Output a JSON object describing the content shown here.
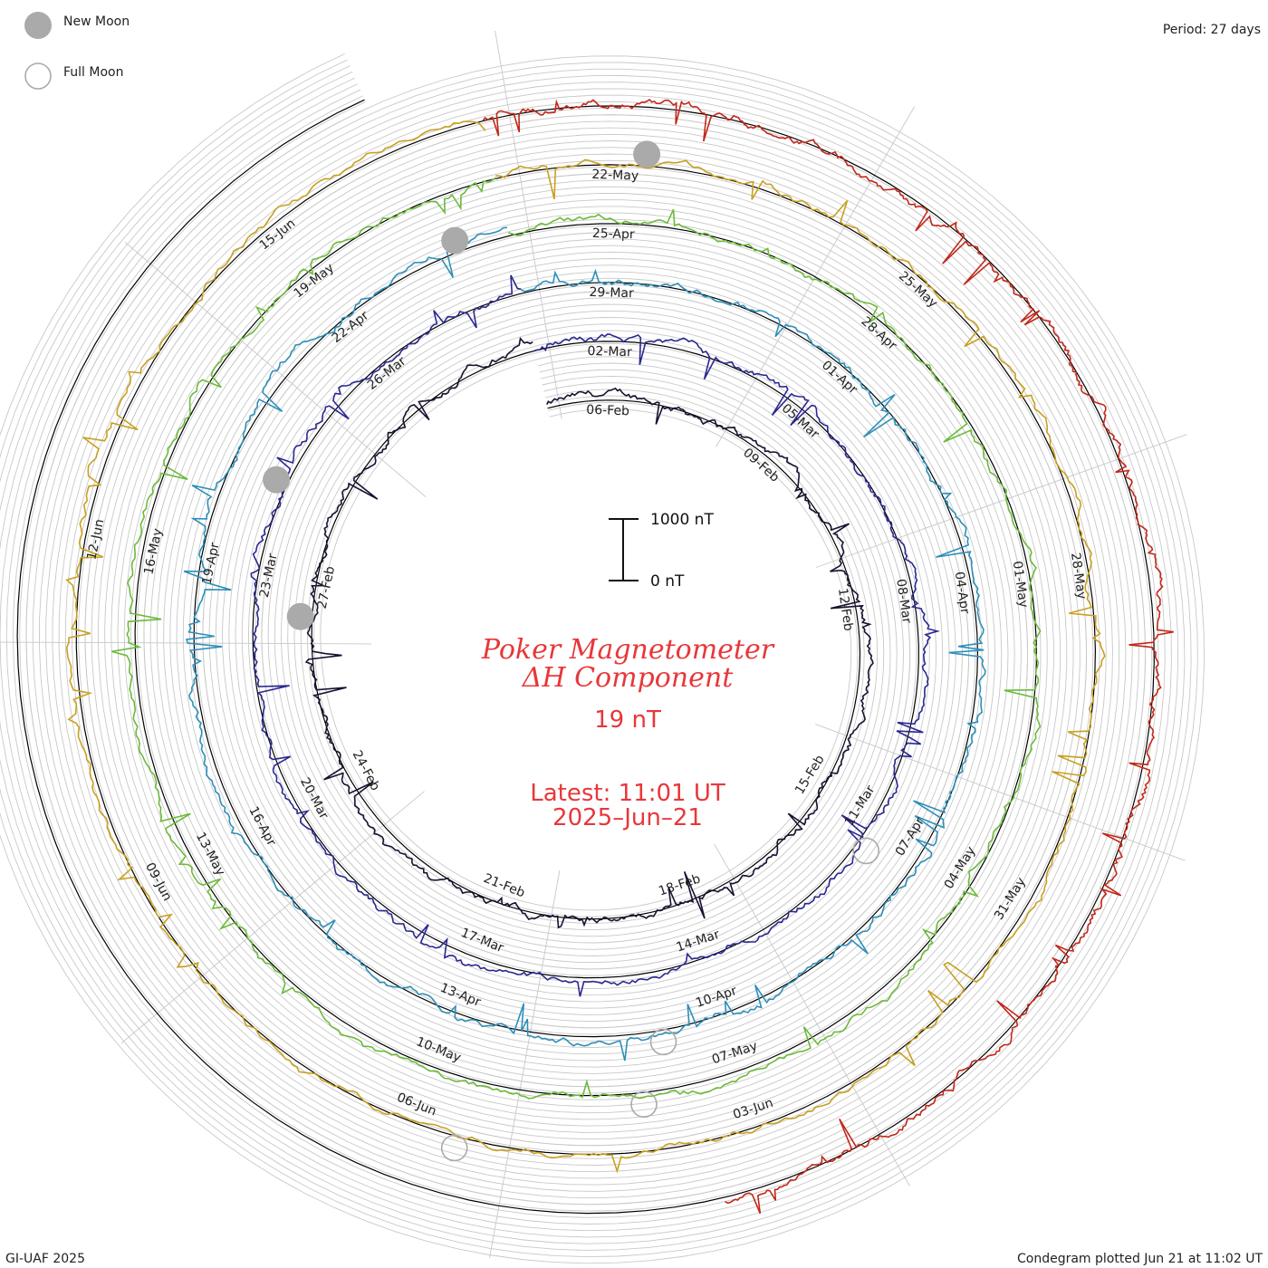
{
  "legend": {
    "new_moon": "New Moon",
    "full_moon": "Full Moon",
    "period": "Period: 27 days"
  },
  "center": {
    "title_line1": "Poker Magnetometer",
    "title_line2": "ΔH Component",
    "value": "19 nT",
    "latest_line1": "Latest: 11:01 UT",
    "latest_line2": "2025–Jun–21"
  },
  "scale_bar": {
    "top_label": "1000 nT",
    "bottom_label": "0 nT"
  },
  "footer": {
    "left": "GI-UAF 2025",
    "right": "Condegram plotted Jun 21 at 11:02 UT"
  },
  "colors": {
    "label_red": "#e8373a",
    "moon_gray": "#aaaaaa",
    "grid": "#c8c8c8"
  },
  "chart_data": {
    "type": "line",
    "layout": "spiral condegram",
    "period_days": 27,
    "scale_nT": [
      0,
      1000
    ],
    "rings": [
      {
        "color": "#1a1030",
        "dates": [
          "06-Feb",
          "09-Feb",
          "12-Feb",
          "15-Feb",
          "18-Feb",
          "21-Feb",
          "24-Feb",
          "27-Feb"
        ]
      },
      {
        "color": "#2a2890",
        "dates": [
          "02-Mar",
          "05-Mar",
          "08-Mar",
          "11-Mar",
          "14-Mar",
          "17-Mar",
          "20-Mar",
          "23-Mar",
          "26-Mar"
        ]
      },
      {
        "color": "#2e8fb8",
        "dates": [
          "29-Mar",
          "01-Apr",
          "04-Apr",
          "07-Apr",
          "10-Apr",
          "13-Apr",
          "16-Apr",
          "19-Apr",
          "22-Apr"
        ]
      },
      {
        "color": "#6cba3a",
        "dates": [
          "25-Apr",
          "28-Apr",
          "01-May",
          "04-May",
          "07-May",
          "10-May",
          "13-May",
          "16-May",
          "19-May"
        ]
      },
      {
        "color": "#c8a020",
        "dates": [
          "22-May",
          "25-May",
          "28-May",
          "31-May",
          "03-Jun",
          "06-Jun",
          "09-Jun",
          "12-Jun",
          "15-Jun"
        ]
      },
      {
        "color": "#c0281a",
        "dates": []
      }
    ],
    "new_moons": [
      "27-Feb",
      "29-Mar",
      "28-Apr",
      "27-May"
    ],
    "full_moons": [
      "13-Mar",
      "13-Apr",
      "12-May",
      "11-Jun"
    ]
  }
}
